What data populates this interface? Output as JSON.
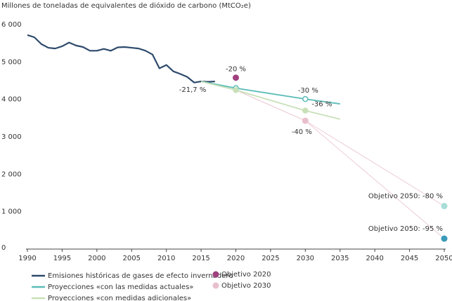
{
  "chart_data": {
    "type": "line",
    "y_axis_label": "Millones de toneladas de equivalentes de dióxido de carbono (MtCO₂e)",
    "xlim": [
      1990,
      2050
    ],
    "xticks": [
      1990,
      1995,
      2000,
      2005,
      2010,
      2015,
      2020,
      2025,
      2030,
      2035,
      2040,
      2045,
      2050
    ],
    "ylim": [
      0,
      6000
    ],
    "yticks": [
      0,
      {
        "value": 1000,
        "label": "1 000"
      },
      {
        "value": 2000,
        "label": "2 000"
      },
      {
        "value": 3000,
        "label": "3 000"
      },
      {
        "value": 4000,
        "label": "4 000"
      },
      {
        "value": 5000,
        "label": "5 000"
      },
      {
        "value": 6000,
        "label": "6 000"
      }
    ],
    "series": [
      {
        "name": "Emisiones históricas de gases de efecto invernadero",
        "color": "#2e4a6b",
        "x": [
          1990,
          1991,
          1992,
          1993,
          1994,
          1995,
          1996,
          1997,
          1998,
          1999,
          2000,
          2001,
          2002,
          2003,
          2004,
          2005,
          2006,
          2007,
          2008,
          2009,
          2010,
          2011,
          2012,
          2013,
          2014,
          2015,
          2016,
          2017
        ],
        "values": [
          5720,
          5660,
          5480,
          5380,
          5360,
          5420,
          5520,
          5440,
          5400,
          5300,
          5300,
          5350,
          5300,
          5390,
          5400,
          5380,
          5360,
          5300,
          5200,
          4830,
          4920,
          4750,
          4680,
          4600,
          4450,
          4480,
          4470,
          4480
        ]
      },
      {
        "name": "Proyecciones «con las medidas actuales»",
        "color": "#5bbcb8",
        "x": [
          2015,
          2020,
          2030,
          2035
        ],
        "values": [
          4480,
          4300,
          4010,
          3880
        ]
      },
      {
        "name": "Proyecciones «con medidas adicionales»",
        "color": "#c8e0b8",
        "x": [
          2015,
          2020,
          2030,
          2035
        ],
        "values": [
          4480,
          4250,
          3700,
          3470
        ]
      }
    ],
    "targets": [
      {
        "name": "Objetivo 2020",
        "color": "#a0407e",
        "x": 2020,
        "value": 4580
      },
      {
        "name": "Objetivo 2030",
        "color": "#e8c0cc",
        "x": 2030,
        "value": 3430
      }
    ],
    "targets_2050": [
      {
        "label": "Objetivo 2050: -80 %",
        "color": "#a8ddd8",
        "x": 2050,
        "value": 1150
      },
      {
        "label": "Objetivo 2050: -95 %",
        "color": "#3a9ab8",
        "x": 2050,
        "value": 280
      }
    ],
    "annotations": [
      {
        "text": "-21,7 %",
        "x": 2015,
        "y": 4480
      },
      {
        "text": "-20 %",
        "x": 2020,
        "y": 4580
      },
      {
        "text": "-30 %",
        "x": 2030,
        "y": 4010
      },
      {
        "text": "-36 %",
        "x": 2030,
        "y": 3700
      },
      {
        "text": "-40 %",
        "x": 2030,
        "y": 3430
      }
    ]
  }
}
